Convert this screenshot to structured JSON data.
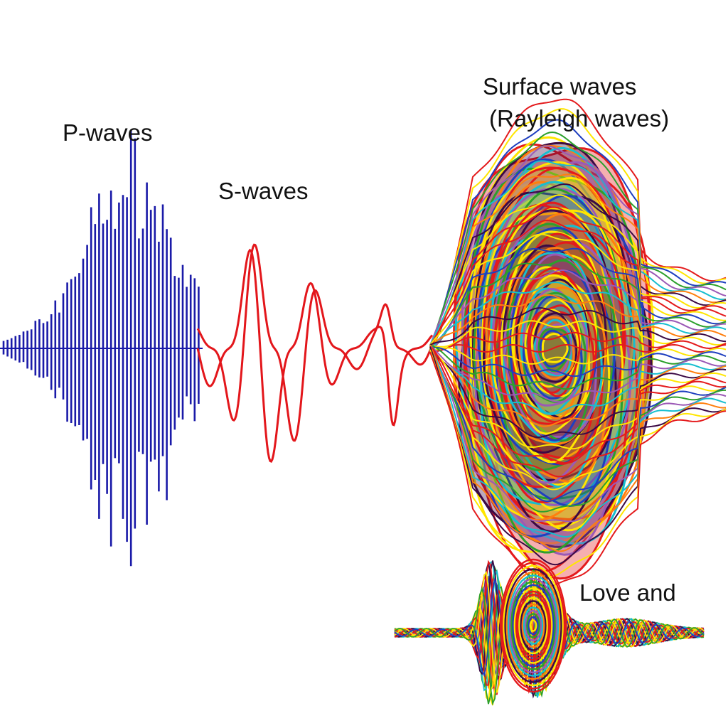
{
  "labels": {
    "p_waves": "P-waves",
    "s_waves": "S-waves",
    "surface_waves": [
      "Surface waves",
      "(Rayleigh waves)"
    ],
    "love": "Love and"
  }
}
